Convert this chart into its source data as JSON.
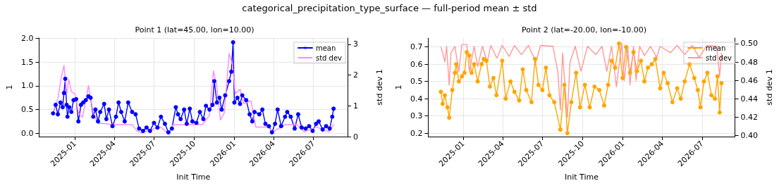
{
  "chart_data": [
    {
      "type": "line",
      "title": "Point 1 (lat=45.00, lon=10.00)",
      "annotations": [
        "categorical_precipitation_type_surface — full-period mean ± std"
      ],
      "xlabel": "Init Time",
      "ylabel": "1",
      "y2label": "std dev 1",
      "grid": true,
      "legend": "top right",
      "xlim": [
        "2024-10-11",
        "2026-09-17"
      ],
      "xticks": [
        {
          "value": "2025-01-01",
          "label": "2025-01"
        },
        {
          "value": "2025-04-01",
          "label": "2025-04"
        },
        {
          "value": "2025-07-01",
          "label": "2025-07"
        },
        {
          "value": "2025-10-01",
          "label": "2025-10"
        },
        {
          "value": "2026-01-01",
          "label": "2026-01"
        },
        {
          "value": "2026-04-01",
          "label": "2026-04"
        },
        {
          "value": "2026-07-01",
          "label": "2026-07"
        }
      ],
      "ylim": [
        -0.07,
        2.01
      ],
      "yticks": [
        {
          "value": 0,
          "label": "0.0"
        },
        {
          "value": 0.5,
          "label": "0.5"
        },
        {
          "value": 1,
          "label": "1.0"
        },
        {
          "value": 1.5,
          "label": "1.5"
        },
        {
          "value": 2,
          "label": "2.0"
        }
      ],
      "y2lim": [
        0,
        3.2
      ],
      "y2ticks": [
        0,
        1,
        2,
        3
      ],
      "series": [
        {
          "name": "mean",
          "color": "#0000ff",
          "marker": "circle",
          "x": [
            "2024-11-12",
            "2024-11-18",
            "2024-11-23",
            "2024-11-29",
            "2024-12-04",
            "2024-12-07",
            "2024-12-10",
            "2024-12-13",
            "2024-12-15",
            "2024-12-19",
            "2024-12-24",
            "2024-12-29",
            "2025-01-04",
            "2025-01-09",
            "2025-01-15",
            "2025-01-20",
            "2025-01-26",
            "2025-02-01",
            "2025-02-06",
            "2025-02-12",
            "2025-02-17",
            "2025-02-23",
            "2025-02-28",
            "2025-03-09",
            "2025-03-14",
            "2025-03-20",
            "2025-03-28",
            "2025-04-05",
            "2025-04-11",
            "2025-04-17",
            "2025-04-25",
            "2025-05-03",
            "2025-05-12",
            "2025-05-20",
            "2025-05-28",
            "2025-06-06",
            "2025-06-14",
            "2025-06-22",
            "2025-07-01",
            "2025-07-09",
            "2025-07-17",
            "2025-07-26",
            "2025-08-03",
            "2025-08-11",
            "2025-08-20",
            "2025-08-25",
            "2025-08-31",
            "2025-09-08",
            "2025-09-14",
            "2025-09-21",
            "2025-09-27",
            "2025-10-06",
            "2025-10-14",
            "2025-10-22",
            "2025-10-28",
            "2025-11-05",
            "2025-11-12",
            "2025-11-16",
            "2025-11-22",
            "2025-11-28",
            "2025-12-03",
            "2025-12-11",
            "2025-12-20",
            "2025-12-25",
            "2025-12-29",
            "2026-01-01",
            "2026-01-08",
            "2026-01-14",
            "2026-01-19",
            "2026-01-28",
            "2026-02-05",
            "2026-02-11",
            "2026-02-16",
            "2026-02-27",
            "2026-03-06",
            "2026-03-13",
            "2026-03-21",
            "2026-03-28",
            "2026-04-04",
            "2026-04-10",
            "2026-04-18",
            "2026-04-27",
            "2026-05-02",
            "2026-05-10",
            "2026-05-19",
            "2026-05-27",
            "2026-06-04",
            "2026-06-13",
            "2026-06-21",
            "2026-06-29",
            "2026-07-07",
            "2026-07-13",
            "2026-07-22",
            "2026-07-30",
            "2026-08-07",
            "2026-08-13",
            "2026-08-16"
          ],
          "values": [
            0.42,
            0.6,
            0.4,
            0.65,
            0.55,
            0.85,
            1.15,
            0.6,
            0.35,
            0.55,
            0.45,
            0.7,
            0.72,
            0.25,
            0.6,
            0.65,
            0.7,
            0.78,
            0.75,
            0.35,
            0.5,
            0.25,
            0.45,
            0.62,
            0.3,
            0.5,
            0.15,
            0.35,
            0.65,
            0.45,
            0.25,
            0.65,
            0.45,
            0.4,
            0.1,
            0.05,
            0.12,
            0.05,
            0.22,
            0.12,
            0.35,
            0.2,
            0.02,
            0.1,
            0.55,
            0.4,
            0.3,
            0.5,
            0.2,
            0.52,
            0.25,
            0.22,
            0.45,
            0.3,
            0.58,
            0.5,
            0.6,
            1.1,
            0.65,
            0.75,
            0.5,
            0.8,
            1.1,
            1.3,
            1.92,
            0.65,
            0.75,
            0.62,
            0.8,
            0.7,
            0.4,
            0.25,
            0.45,
            0.4,
            0.5,
            0.2,
            0.15,
            0.02,
            0.2,
            0.5,
            0.15,
            0.35,
            0.45,
            0.35,
            0.1,
            0.4,
            0.12,
            0.1,
            0.15,
            0.05,
            0.2,
            0.25,
            0.08,
            0.15,
            0.1,
            0.35,
            0.52
          ]
        },
        {
          "name": "std dev",
          "color": "#ff88ff",
          "marker": "none",
          "axis": "y2",
          "x": [
            "2024-11-12",
            "2024-11-23",
            "2024-12-01",
            "2024-12-07",
            "2024-12-13",
            "2024-12-18",
            "2024-12-24",
            "2025-01-01",
            "2025-01-09",
            "2025-01-18",
            "2025-01-26",
            "2025-02-01",
            "2025-02-06",
            "2025-02-12",
            "2025-02-23",
            "2025-03-06",
            "2025-03-28",
            "2025-04-19",
            "2025-05-12",
            "2025-05-23",
            "2025-06-03",
            "2025-06-25",
            "2025-07-17",
            "2025-08-03",
            "2025-08-14",
            "2025-09-22",
            "2025-10-20",
            "2025-11-05",
            "2025-11-14",
            "2025-11-22",
            "2025-11-30",
            "2025-12-09",
            "2025-12-20",
            "2025-12-28",
            "2026-01-03",
            "2026-01-14",
            "2026-01-22",
            "2026-02-08",
            "2026-02-19",
            "2026-03-19",
            "2026-03-30",
            "2026-04-27",
            "2026-05-24",
            "2026-06-10",
            "2026-07-08",
            "2026-08-05",
            "2026-08-16"
          ],
          "values": [
            0.77,
            1.23,
            1.93,
            2.31,
            1.39,
            1.85,
            1.46,
            1.39,
            0.77,
            0.62,
            1.16,
            1.66,
            1.23,
            0.77,
            0.43,
            0.43,
            0.39,
            0.39,
            0.39,
            0.18,
            0.12,
            0.23,
            0.31,
            0.08,
            0.39,
            0.39,
            0.39,
            0.69,
            2.13,
            1.62,
            0.54,
            0.77,
            2.7,
            2.31,
            1.39,
            1.54,
            1.08,
            1.16,
            0.31,
            0.31,
            0.15,
            0.39,
            0.39,
            0.15,
            0.31,
            0.15,
            0.39
          ]
        }
      ]
    },
    {
      "type": "line",
      "title": "Point 2 (lat=-20.00, lon=-10.00)",
      "xlabel": "Init Time",
      "ylabel": "1",
      "y2label": "std dev 1",
      "grid": true,
      "legend": "top right",
      "xlim": [
        "2024-10-13",
        "2026-09-14"
      ],
      "xticks": [
        {
          "value": "2025-01-01",
          "label": "2025-01"
        },
        {
          "value": "2025-04-01",
          "label": "2025-04"
        },
        {
          "value": "2025-07-01",
          "label": "2025-07"
        },
        {
          "value": "2025-10-01",
          "label": "2025-10"
        },
        {
          "value": "2026-01-01",
          "label": "2026-01"
        },
        {
          "value": "2026-04-01",
          "label": "2026-04"
        },
        {
          "value": "2026-07-01",
          "label": "2026-07"
        }
      ],
      "ylim": [
        0.18,
        0.752
      ],
      "yticks": [
        0.2,
        0.3,
        0.4,
        0.5,
        0.6,
        0.7
      ],
      "y2lim": [
        0.399,
        0.506
      ],
      "y2ticks": [
        {
          "value": 0.4,
          "label": "0.40"
        },
        0.42,
        0.44,
        0.46,
        0.48,
        {
          "value": 0.5,
          "label": "0.50"
        }
      ],
      "series": [
        {
          "name": "mean",
          "color": "#ffa500",
          "marker": "circle",
          "x": [
            "2024-11-11",
            "2024-11-15",
            "2024-11-20",
            "2024-11-26",
            "2024-11-30",
            "2024-12-07",
            "2024-12-13",
            "2024-12-16",
            "2024-12-22",
            "2024-12-29",
            "2025-01-04",
            "2025-01-09",
            "2025-01-15",
            "2025-01-20",
            "2025-01-26",
            "2025-02-03",
            "2025-02-12",
            "2025-02-17",
            "2025-02-23",
            "2025-03-03",
            "2025-03-11",
            "2025-03-18",
            "2025-03-31",
            "2025-04-08",
            "2025-04-19",
            "2025-04-28",
            "2025-05-09",
            "2025-05-17",
            "2025-05-25",
            "2025-06-06",
            "2025-06-14",
            "2025-06-22",
            "2025-07-01",
            "2025-07-09",
            "2025-07-17",
            "2025-07-28",
            "2025-08-11",
            "2025-08-20",
            "2025-08-27",
            "2025-09-05",
            "2025-09-16",
            "2025-09-25",
            "2025-10-06",
            "2025-10-17",
            "2025-10-28",
            "2025-11-08",
            "2025-11-19",
            "2025-11-28",
            "2025-12-06",
            "2025-12-14",
            "2025-12-23",
            "2025-12-31",
            "2026-01-08",
            "2026-01-17",
            "2026-01-25",
            "2026-02-02",
            "2026-02-11",
            "2026-02-19",
            "2026-02-27",
            "2026-03-08",
            "2026-03-16",
            "2026-03-27",
            "2026-04-04",
            "2026-04-13",
            "2026-04-24",
            "2026-05-05",
            "2026-05-13",
            "2026-05-22",
            "2026-06-02",
            "2026-06-13",
            "2026-06-21",
            "2026-06-27",
            "2026-07-05",
            "2026-07-13",
            "2026-07-22",
            "2026-07-30",
            "2026-08-05",
            "2026-08-10",
            "2026-08-14"
          ],
          "values": [
            0.44,
            0.37,
            0.42,
            0.35,
            0.29,
            0.45,
            0.55,
            0.6,
            0.5,
            0.53,
            0.55,
            0.67,
            0.65,
            0.55,
            0.6,
            0.5,
            0.6,
            0.63,
            0.62,
            0.47,
            0.52,
            0.42,
            0.62,
            0.4,
            0.5,
            0.44,
            0.39,
            0.57,
            0.45,
            0.38,
            0.63,
            0.48,
            0.45,
            0.58,
            0.42,
            0.38,
            0.22,
            0.48,
            0.2,
            0.38,
            0.55,
            0.35,
            0.48,
            0.35,
            0.47,
            0.45,
            0.36,
            0.48,
            0.62,
            0.58,
            0.72,
            0.52,
            0.7,
            0.55,
            0.67,
            0.56,
            0.62,
            0.5,
            0.58,
            0.6,
            0.63,
            0.46,
            0.55,
            0.49,
            0.38,
            0.46,
            0.4,
            0.5,
            0.6,
            0.52,
            0.45,
            0.35,
            0.5,
            0.55,
            0.42,
            0.4,
            0.53,
            0.32,
            0.49
          ]
        },
        {
          "name": "std dev",
          "color": "#ff9999",
          "marker": "none",
          "axis": "y2",
          "x": [
            "2024-11-11",
            "2024-11-15",
            "2024-11-20",
            "2024-11-24",
            "2024-11-30",
            "2024-12-04",
            "2024-12-13",
            "2024-12-22",
            "2024-12-29",
            "2025-01-09",
            "2025-01-15",
            "2025-01-26",
            "2025-02-03",
            "2025-02-14",
            "2025-02-25",
            "2025-03-05",
            "2025-03-19",
            "2025-03-31",
            "2025-04-16",
            "2025-04-28",
            "2025-05-14",
            "2025-05-30",
            "2025-06-16",
            "2025-06-27",
            "2025-07-25",
            "2025-08-05",
            "2025-08-11",
            "2025-08-16",
            "2025-08-27",
            "2025-09-02",
            "2025-09-14",
            "2025-09-27",
            "2025-10-12",
            "2025-10-31",
            "2025-11-14",
            "2025-11-25",
            "2025-12-06",
            "2025-12-17",
            "2025-12-29",
            "2026-01-04",
            "2026-01-12",
            "2026-01-17",
            "2026-01-25",
            "2026-01-31",
            "2026-02-08",
            "2026-02-19",
            "2026-03-05",
            "2026-03-19",
            "2026-03-27",
            "2026-04-19",
            "2026-05-05",
            "2026-05-22",
            "2026-06-08",
            "2026-06-24",
            "2026-07-12",
            "2026-08-03",
            "2026-08-10",
            "2026-08-14"
          ],
          "values": [
            0.496,
            0.49,
            0.48,
            0.497,
            0.455,
            0.49,
            0.497,
            0.47,
            0.499,
            0.499,
            0.47,
            0.497,
            0.475,
            0.497,
            0.48,
            0.498,
            0.484,
            0.498,
            0.486,
            0.498,
            0.488,
            0.498,
            0.48,
            0.498,
            0.497,
            0.47,
            0.428,
            0.49,
            0.42,
            0.48,
            0.497,
            0.47,
            0.497,
            0.488,
            0.497,
            0.47,
            0.497,
            0.453,
            0.5,
            0.46,
            0.497,
            0.455,
            0.497,
            0.46,
            0.497,
            0.487,
            0.497,
            0.485,
            0.497,
            0.49,
            0.498,
            0.488,
            0.498,
            0.485,
            0.498,
            0.497,
            0.465,
            0.49
          ]
        }
      ]
    }
  ]
}
